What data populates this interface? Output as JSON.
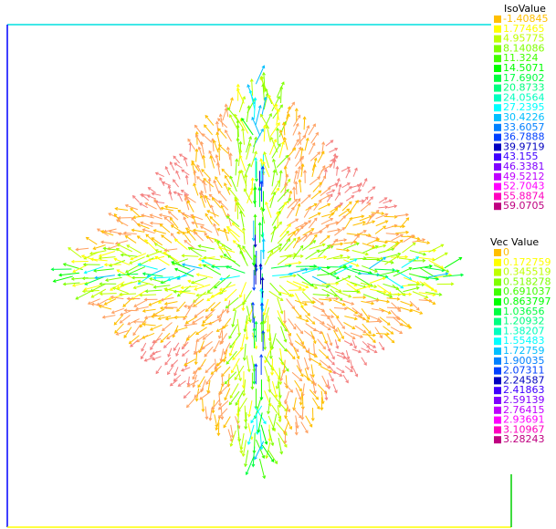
{
  "chart_data": {
    "type": "vector-field",
    "legends": [
      {
        "title": "IsoValue",
        "values": [
          -1.40845,
          1.77465,
          4.95775,
          8.14086,
          11.324,
          14.5071,
          17.6902,
          20.8733,
          24.0564,
          27.2395,
          30.4226,
          33.6057,
          36.7888,
          39.9719,
          43.155,
          46.3381,
          49.5212,
          52.7043,
          55.8874,
          59.0705
        ],
        "colors": [
          "#ffbf00",
          "#ffff00",
          "#bfff00",
          "#80ff00",
          "#40ff00",
          "#00ff00",
          "#00ff40",
          "#00ff80",
          "#00ffbf",
          "#00ffff",
          "#00bfff",
          "#0080ff",
          "#0040ff",
          "#0000c0",
          "#4000ff",
          "#8000ff",
          "#bf00ff",
          "#ff00ff",
          "#ff00bf",
          "#bf0080"
        ]
      },
      {
        "title": "Vec Value",
        "values": [
          0,
          0.172759,
          0.345519,
          0.518278,
          0.691037,
          0.863797,
          1.03656,
          1.20932,
          1.38207,
          1.55483,
          1.72759,
          1.90035,
          2.07311,
          2.24587,
          2.41863,
          2.59139,
          2.76415,
          2.93691,
          3.10967,
          3.28243
        ],
        "colors": [
          "#ffbf00",
          "#ffff00",
          "#bfff00",
          "#80ff00",
          "#40ff00",
          "#00ff00",
          "#00ff40",
          "#00ff80",
          "#00ffbf",
          "#00ffff",
          "#00bfff",
          "#0080ff",
          "#0040ff",
          "#0000c0",
          "#4000ff",
          "#8000ff",
          "#bf00ff",
          "#ff00ff",
          "#ff00bf",
          "#bf0080"
        ]
      }
    ]
  }
}
